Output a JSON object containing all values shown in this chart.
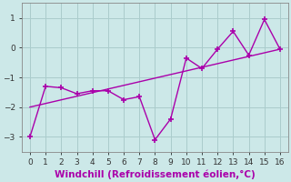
{
  "xlabel": "Windchill (Refroidissement éolien,°C)",
  "bg_color": "#cce8e8",
  "line_color": "#aa00aa",
  "xlim": [
    -0.5,
    16.5
  ],
  "ylim": [
    -3.5,
    1.5
  ],
  "xticks": [
    0,
    1,
    2,
    3,
    4,
    5,
    6,
    7,
    8,
    9,
    10,
    11,
    12,
    13,
    14,
    15,
    16
  ],
  "yticks": [
    -3,
    -2,
    -1,
    0,
    1
  ],
  "data_x": [
    0,
    1,
    2,
    3,
    4,
    5,
    6,
    7,
    8,
    9,
    10,
    11,
    12,
    13,
    14,
    15,
    16
  ],
  "data_y": [
    -3.0,
    -1.3,
    -1.35,
    -1.55,
    -1.45,
    -1.45,
    -1.75,
    -1.65,
    -3.1,
    -2.4,
    -0.35,
    -0.7,
    -0.05,
    0.55,
    -0.25,
    0.95,
    -0.05
  ],
  "trend_x": [
    0,
    16
  ],
  "trend_y": [
    -2.0,
    -0.05
  ],
  "grid_color": "#aacccc",
  "tick_fontsize": 6.5,
  "xlabel_fontsize": 7.5,
  "spine_color": "#888888"
}
